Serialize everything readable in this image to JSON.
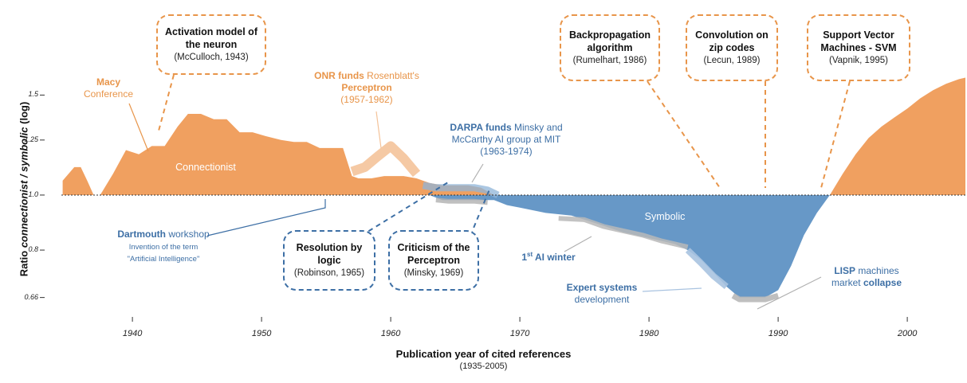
{
  "chart_data": {
    "type": "area",
    "title": "",
    "xlabel": "Publication year of cited references",
    "xlabel_sub": "(1935-2005)",
    "ylabel_pre": "Ratio ",
    "ylabel_em": "connectionist / symbolic",
    "ylabel_post": " (log)",
    "xlim": [
      1934.5,
      2004.5
    ],
    "ylim": [
      0.62,
      1.72
    ],
    "baseline": 1.0,
    "x_ticks": [
      1940,
      1950,
      1960,
      1970,
      1980,
      1990,
      2000
    ],
    "y_ticks": [
      {
        "value": 1.5,
        "label": "1.5"
      },
      {
        "value": 1.25,
        "label": "1.25"
      },
      {
        "value": 1.0,
        "label": "1.0"
      },
      {
        "value": 0.8,
        "label": "0.8"
      },
      {
        "value": 0.66,
        "label": "0.66"
      }
    ],
    "series": [
      {
        "name": "Connectionist",
        "color": "#f0a060",
        "x": [
          1934.6,
          1935.5,
          1936,
          1936.5,
          1937,
          1937.5,
          1938.5,
          1939.5,
          1940.5,
          1941.5,
          1942.5,
          1943.5,
          1944.3,
          1945.3,
          1946.3,
          1947.3,
          1948.3,
          1949.3,
          1950.3,
          1951.5,
          1952.5,
          1953.5,
          1954.5,
          1955.5,
          1956.3,
          1957,
          1957.5,
          1958.5,
          1959.5,
          1960.3,
          1961,
          1962,
          1963,
          1964,
          1965,
          1966,
          1967,
          1968
        ],
        "y": [
          1.06,
          1.12,
          1.12,
          1.06,
          1.0,
          1.0,
          1.09,
          1.2,
          1.18,
          1.22,
          1.22,
          1.32,
          1.39,
          1.39,
          1.36,
          1.36,
          1.29,
          1.29,
          1.27,
          1.25,
          1.24,
          1.24,
          1.21,
          1.21,
          1.21,
          1.08,
          1.07,
          1.07,
          1.08,
          1.08,
          1.08,
          1.07,
          1.05,
          1.04,
          1.04,
          1.04,
          1.03,
          1.0
        ]
      },
      {
        "name": "Symbolic",
        "color": "#6798c7",
        "x": [
          1963,
          1964,
          1965,
          1966,
          1967,
          1968,
          1969,
          1970,
          1972,
          1974,
          1976,
          1978,
          1980,
          1982,
          1983,
          1984,
          1985,
          1986,
          1987,
          1988,
          1989,
          1990,
          1991,
          1992,
          1993,
          1994
        ],
        "y": [
          1.0,
          0.98,
          0.98,
          0.98,
          0.98,
          0.98,
          0.96,
          0.95,
          0.93,
          0.92,
          0.89,
          0.86,
          0.84,
          0.82,
          0.8,
          0.77,
          0.73,
          0.69,
          0.66,
          0.66,
          0.66,
          0.68,
          0.75,
          0.85,
          0.93,
          1.0
        ]
      },
      {
        "name": "Connectionist",
        "color": "#f0a060",
        "x": [
          1994,
          1995,
          1996,
          1997,
          1998,
          1999,
          2000,
          2001,
          2002,
          2003,
          2004,
          2004.5
        ],
        "y": [
          1.0,
          1.09,
          1.18,
          1.26,
          1.32,
          1.37,
          1.42,
          1.48,
          1.53,
          1.57,
          1.6,
          1.61
        ]
      }
    ],
    "area_labels": {
      "connectionist": "Connectionist",
      "symbolic": "Symbolic"
    },
    "highlights": [
      {
        "name": "perceptron",
        "x": [
          1957,
          1958,
          1959,
          1960,
          1961,
          1962
        ],
        "y": [
          1.1,
          1.12,
          1.17,
          1.22,
          1.16,
          1.09
        ]
      },
      {
        "name": "darpa",
        "x": [
          1962.5,
          1963.5,
          1964.5,
          1965.5,
          1966.5,
          1967.5,
          1968.3
        ],
        "y": [
          1.04,
          1.03,
          1.03,
          1.03,
          1.03,
          1.02,
          1.0
        ]
      },
      {
        "name": "darpa-under",
        "x": [
          1963.5,
          1964.5,
          1965.5,
          1966.5,
          1967.5
        ],
        "y": [
          0.98,
          0.975,
          0.975,
          0.975,
          0.97
        ]
      },
      {
        "name": "ai-winter",
        "x": [
          1973,
          1975,
          1976.5,
          1978,
          1979.5,
          1981,
          1983
        ],
        "y": [
          0.91,
          0.905,
          0.88,
          0.865,
          0.85,
          0.83,
          0.81
        ]
      },
      {
        "name": "expert-systems",
        "x": [
          1983,
          1984,
          1985,
          1986
        ],
        "y": [
          0.8,
          0.76,
          0.72,
          0.69
        ]
      },
      {
        "name": "lisp",
        "x": [
          1986.5,
          1987,
          1988,
          1989,
          1990
        ],
        "y": [
          0.665,
          0.655,
          0.655,
          0.655,
          0.665
        ]
      }
    ]
  },
  "annotations": {
    "activation": {
      "title": "Activation model of the neuron",
      "sub": "(McCulloch, 1943)"
    },
    "backprop": {
      "title": "Backpropagation algorithm",
      "sub": "(Rumelhart, 1986)"
    },
    "convolution": {
      "title": "Convolution on zip codes",
      "sub": "(Lecun, 1989)"
    },
    "svm": {
      "title": "Support Vector Machines - SVM",
      "sub": "(Vapnik, 1995)"
    },
    "resolution": {
      "title": "Resolution by logic",
      "sub": "(Robinson, 1965)"
    },
    "criticism": {
      "title": "Criticism of the Perceptron",
      "sub": "(Minsky, 1969)"
    },
    "macy": {
      "bold": "Macy",
      "rest": "Conference"
    },
    "onr": {
      "bold1": "ONR funds",
      "mid": " Rosenblatt's",
      "bold2": "Perceptron",
      "years": "(1957-1962)"
    },
    "darpa": {
      "bold": "DARPA funds",
      "rest1": " Minsky and",
      "rest2": "McCarthy AI group at MIT",
      "years": "(1963-1974)"
    },
    "dartmouth": {
      "bold": "Dartmouth",
      "rest": " workshop",
      "sub1": "Invention of the term",
      "sub2": "\"Artificial Intelligence\""
    },
    "aiwinter": {
      "num": "1",
      "sup": "st",
      "rest": " AI winter"
    },
    "expert": {
      "bold": "Expert systems",
      "rest": "development"
    },
    "lisp": {
      "bold1": "LISP",
      "rest": " machines",
      "pre2": "market ",
      "bold2": "collapse"
    }
  },
  "colors": {
    "orange": "#f0a060",
    "orange_text": "#e8954a",
    "blue": "#6798c7",
    "blue_text": "#3d6fa5"
  }
}
